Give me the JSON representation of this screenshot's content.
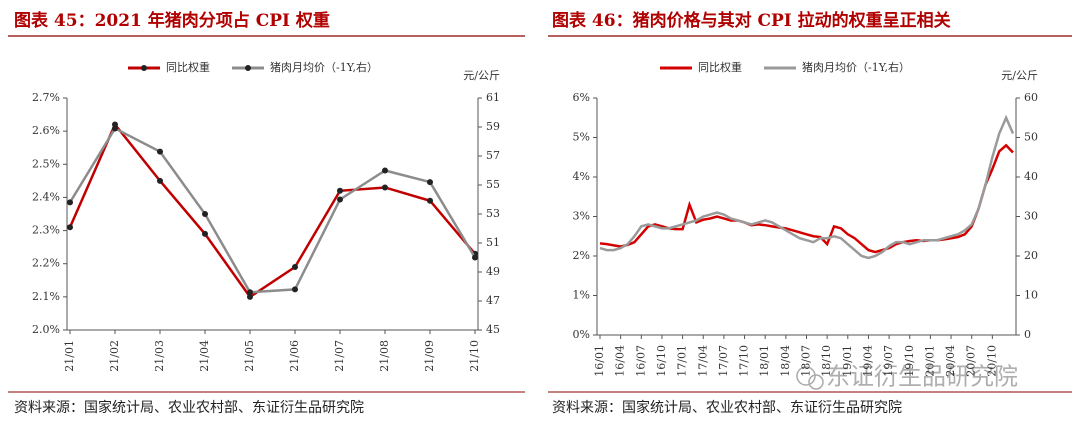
{
  "chart_data": [
    {
      "type": "line",
      "title": "图表 45：2021 年猪肉分项占 CPI 权重",
      "categories": [
        "21/01",
        "21/02",
        "21/03",
        "21/04",
        "21/05",
        "21/06",
        "21/07",
        "21/08",
        "21/09",
        "21/10"
      ],
      "series": [
        {
          "name": "同比权重",
          "color": "#c00000",
          "values": [
            2.31,
            2.62,
            2.45,
            2.29,
            2.1,
            2.19,
            2.42,
            2.43,
            2.39,
            2.23
          ]
        },
        {
          "name": "猪肉月均价（-1Y,右）",
          "color": "#8c8c8c",
          "axis": "y2",
          "values": [
            53.8,
            58.9,
            57.3,
            53.0,
            47.6,
            47.8,
            54.0,
            56.0,
            55.2,
            50.0
          ]
        }
      ],
      "markers": true,
      "ylim": [
        2.0,
        2.7
      ],
      "yticks": [
        {
          "value": 2.0,
          "label": "2.0%"
        },
        {
          "value": 2.1,
          "label": "2.1%"
        },
        {
          "value": 2.2,
          "label": "2.2%"
        },
        {
          "value": 2.3,
          "label": "2.3%"
        },
        {
          "value": 2.4,
          "label": "2.4%"
        },
        {
          "value": 2.5,
          "label": "2.5%"
        },
        {
          "value": 2.6,
          "label": "2.6%"
        },
        {
          "value": 2.7,
          "label": "2.7%"
        }
      ],
      "y2lim": [
        45,
        61
      ],
      "y2ticks": [
        45,
        47,
        49,
        51,
        53,
        55,
        57,
        59,
        61
      ],
      "y2_label": "元/公斤",
      "source": "资料来源：国家统计局、农业农村部、东证衍生品研究院"
    },
    {
      "type": "line",
      "title": "图表 46：猪肉价格与其对 CPI 拉动的权重呈正相关",
      "categories": [
        "16/01",
        null,
        null,
        "16/04",
        null,
        null,
        "16/07",
        null,
        null,
        "16/10",
        null,
        null,
        "17/01",
        null,
        null,
        "17/04",
        null,
        null,
        "17/07",
        null,
        null,
        "17/10",
        null,
        null,
        "18/01",
        null,
        null,
        "18/04",
        null,
        null,
        "18/07",
        null,
        null,
        "18/10",
        null,
        null,
        "19/01",
        null,
        null,
        "19/04",
        null,
        null,
        "19/07",
        null,
        null,
        "19/10",
        null,
        null,
        "20/01",
        null,
        null,
        "20/04",
        null,
        null,
        "20/07",
        null,
        null,
        "20/10",
        null,
        null,
        null
      ],
      "series": [
        {
          "name": "同比权重",
          "color": "#d40000",
          "values": [
            2.32,
            2.3,
            2.27,
            2.24,
            2.28,
            2.35,
            2.55,
            2.75,
            2.8,
            2.75,
            2.7,
            2.68,
            2.68,
            3.3,
            2.85,
            2.92,
            2.95,
            3.0,
            2.95,
            2.9,
            2.9,
            2.85,
            2.78,
            2.8,
            2.78,
            2.75,
            2.72,
            2.7,
            2.65,
            2.6,
            2.55,
            2.5,
            2.48,
            2.3,
            2.75,
            2.7,
            2.55,
            2.45,
            2.3,
            2.15,
            2.1,
            2.15,
            2.2,
            2.3,
            2.35,
            2.38,
            2.4,
            2.38,
            2.4,
            2.4,
            2.42,
            2.45,
            2.48,
            2.55,
            2.75,
            3.2,
            3.8,
            4.2,
            4.65,
            4.8,
            4.62
          ]
        },
        {
          "name": "猪肉月均价（-1Y,右）",
          "color": "#9a9a9a",
          "axis": "y2",
          "values": [
            22,
            21.5,
            21.5,
            22,
            23,
            25,
            27.5,
            28,
            27.5,
            27,
            27,
            27.5,
            28,
            28.5,
            29,
            30,
            30.5,
            31,
            30.5,
            29.5,
            29,
            28.5,
            28,
            28.5,
            29,
            28.5,
            27.5,
            26.5,
            25.5,
            24.5,
            24,
            23.5,
            24.5,
            24.5,
            25,
            24.5,
            23,
            21.5,
            20,
            19.5,
            20,
            21,
            22.5,
            23.5,
            23.5,
            23,
            23.5,
            24,
            24,
            24,
            24.5,
            25,
            25.5,
            26.5,
            28,
            32,
            38,
            45,
            51,
            55,
            51
          ]
        }
      ],
      "markers": false,
      "ylim": [
        0,
        6
      ],
      "yticks": [
        {
          "value": 0,
          "label": "0%"
        },
        {
          "value": 1,
          "label": "1%"
        },
        {
          "value": 2,
          "label": "2%"
        },
        {
          "value": 3,
          "label": "3%"
        },
        {
          "value": 4,
          "label": "4%"
        },
        {
          "value": 5,
          "label": "5%"
        },
        {
          "value": 6,
          "label": "6%"
        }
      ],
      "y2lim": [
        0,
        60
      ],
      "y2ticks": [
        0,
        10,
        20,
        30,
        40,
        50,
        60
      ],
      "y2_label": "元/公斤",
      "source": "资料来源：国家统计局、农业农村部、东证衍生品研究院"
    }
  ],
  "watermark": "东证衍生品研究院"
}
